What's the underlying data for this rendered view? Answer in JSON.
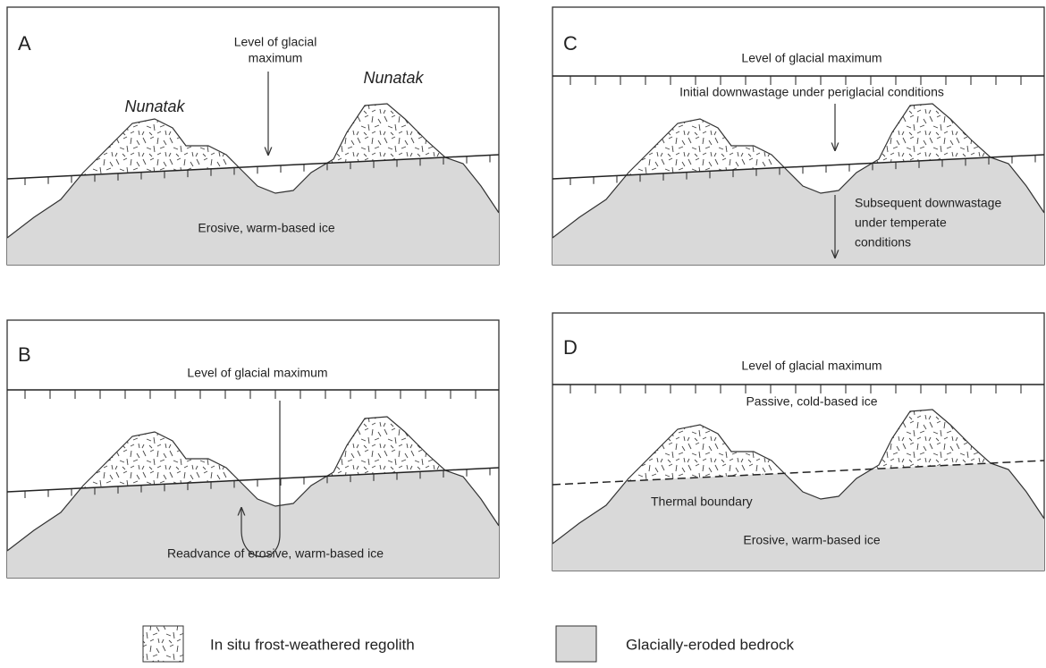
{
  "panels": [
    {
      "letter": "A",
      "texts": [
        "Level of glacial",
        "maximum",
        "Nunatak",
        "Nunatak",
        "Erosive, warm-based ice"
      ]
    },
    {
      "letter": "B",
      "texts": [
        "Level of glacial maximum",
        "Readvance of erosive, warm-based ice"
      ]
    },
    {
      "letter": "C",
      "texts": [
        "Level of glacial maximum",
        "Initial downwastage under periglacial conditions",
        "Subsequent downwastage",
        "under temperate",
        "conditions"
      ]
    },
    {
      "letter": "D",
      "texts": [
        "Level of glacial maximum",
        "Passive, cold-based ice",
        "Thermal boundary",
        "Erosive, warm-based ice"
      ]
    }
  ],
  "legend": [
    {
      "label": "In situ frost-weathered regolith"
    },
    {
      "label": "Glacially-eroded bedrock"
    }
  ]
}
